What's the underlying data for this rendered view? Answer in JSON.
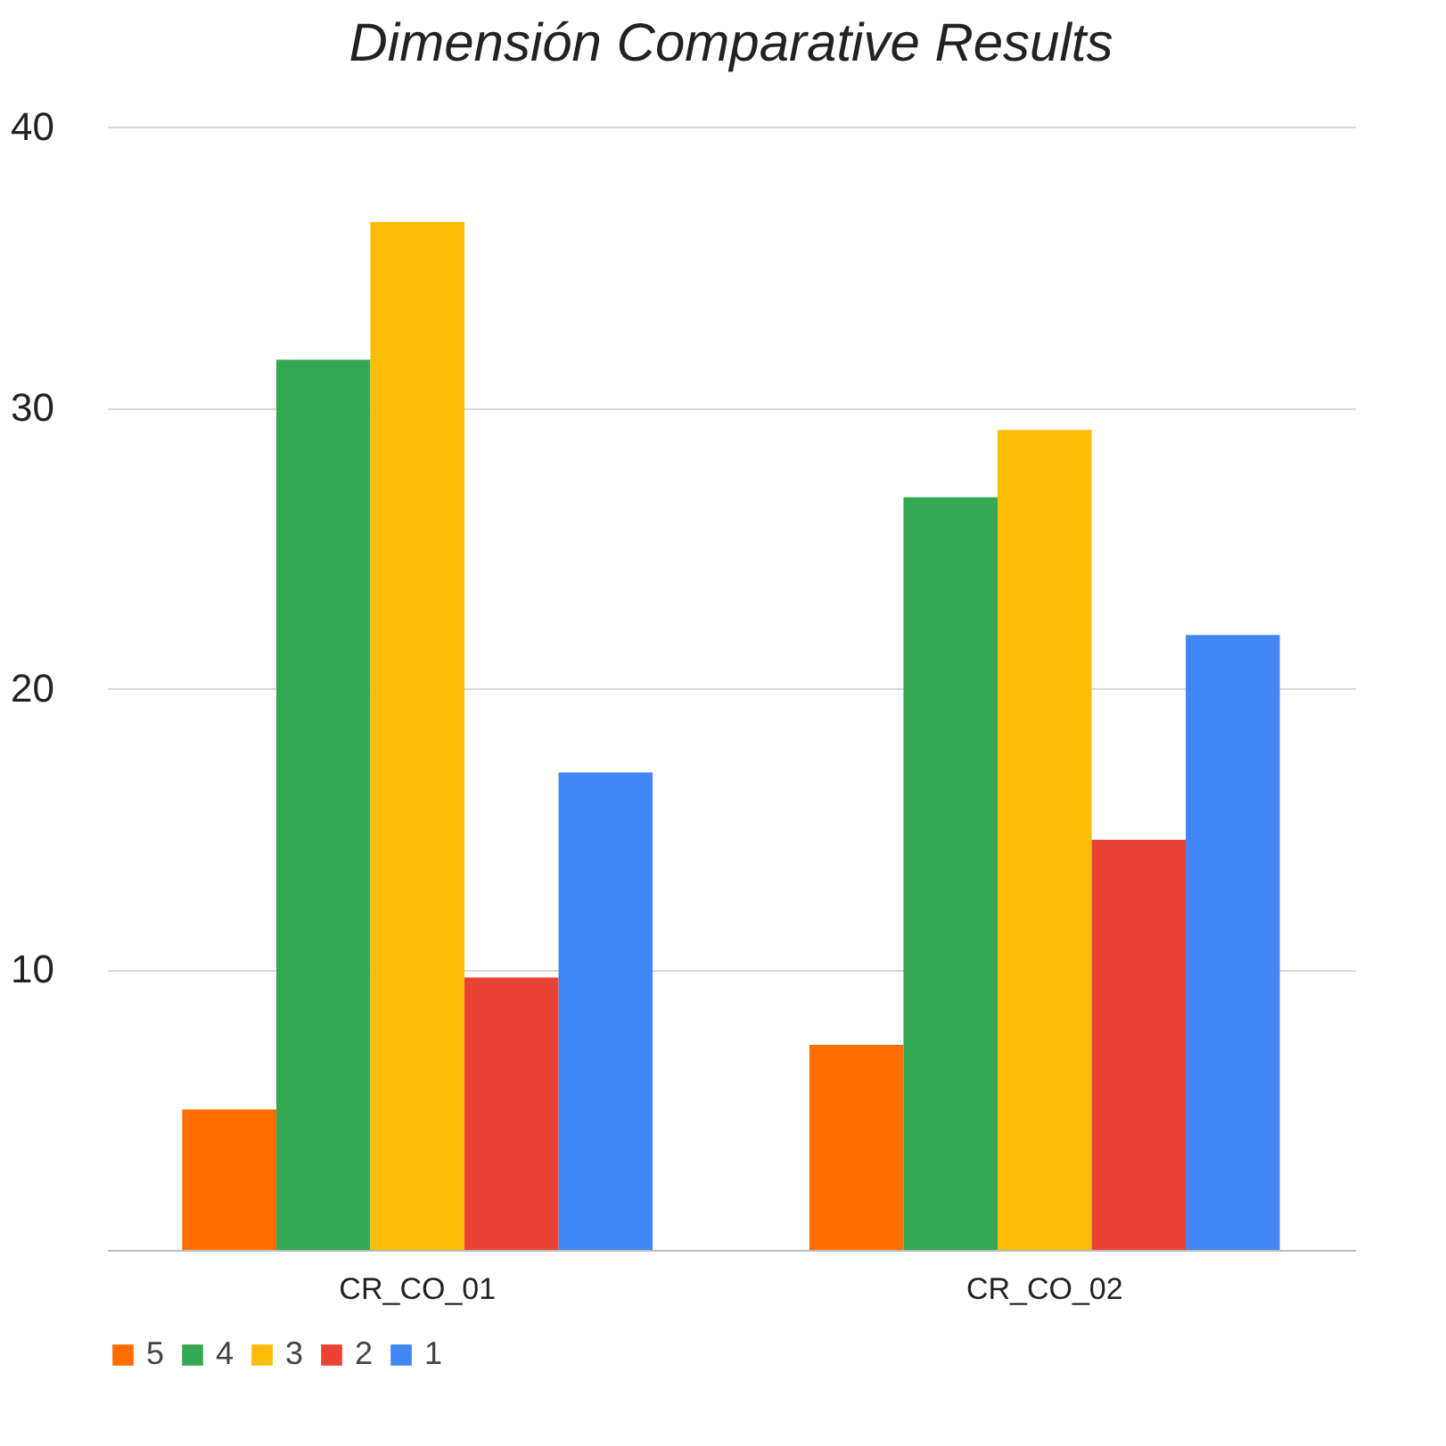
{
  "chart_data": {
    "type": "bar",
    "title": "Dimensión Comparative Results",
    "categories": [
      "CR_CO_01",
      "CR_CO_02"
    ],
    "series": [
      {
        "name": "5",
        "color": "#ff6d01",
        "values": [
          5,
          7.3
        ]
      },
      {
        "name": "4",
        "color": "#34a853",
        "values": [
          31.7,
          26.8
        ]
      },
      {
        "name": "3",
        "color": "#fbbc04",
        "values": [
          36.6,
          29.2
        ]
      },
      {
        "name": "2",
        "color": "#ea4335",
        "values": [
          9.7,
          14.6
        ]
      },
      {
        "name": "1",
        "color": "#4285f4",
        "values": [
          17,
          21.9
        ]
      }
    ],
    "ylim": [
      0,
      40
    ],
    "yticks": [
      10,
      20,
      30,
      40
    ],
    "grid": "y",
    "legend": "bottom"
  }
}
